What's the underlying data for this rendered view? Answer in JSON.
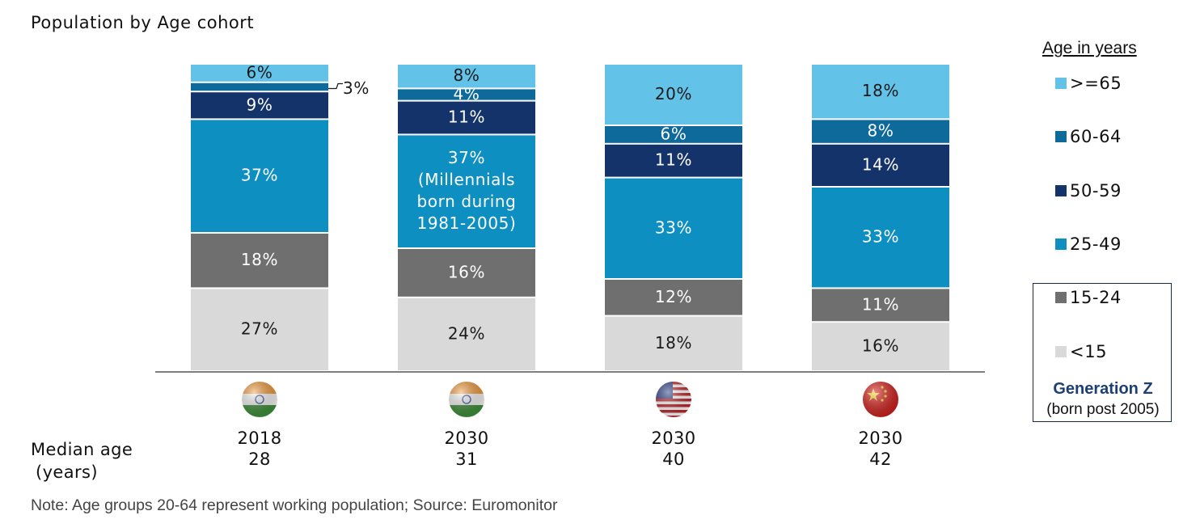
{
  "title": "Population by Age cohort",
  "legend": {
    "title": "Age in years",
    "items": [
      {
        "label": ">=65",
        "color": "#63c2e8"
      },
      {
        "label": "60-64",
        "color": "#0d6a9b"
      },
      {
        "label": "50-59",
        "color": "#14336a"
      },
      {
        "label": "25-49",
        "color": "#0e8fc1"
      },
      {
        "label": "15-24",
        "color": "#6f6f70"
      },
      {
        "label": "<15",
        "color": "#d9d9d9"
      }
    ]
  },
  "generation_z": {
    "title": "Generation  Z",
    "subtitle": "(born post 2005)"
  },
  "median_age_label": [
    "Median age",
    "(years)"
  ],
  "note": "Note: Age groups 20-64 represent working population; Source: Euromonitor",
  "columns": [
    {
      "year": "2018",
      "median_age": "28",
      "flag": "india-flag-icon"
    },
    {
      "year": "2030",
      "median_age": "31",
      "flag": "india-flag-icon"
    },
    {
      "year": "2030",
      "median_age": "40",
      "flag": "usa-flag-icon"
    },
    {
      "year": "2030",
      "median_age": "42",
      "flag": "china-flag-icon"
    }
  ],
  "chart_data": {
    "type": "bar",
    "stacked": true,
    "categories": [
      "2018",
      "2030",
      "2030",
      "2030"
    ],
    "series": [
      {
        "name": "<15",
        "values": [
          27,
          24,
          18,
          16
        ],
        "labels": [
          "27%",
          "24%",
          "18%",
          "16%"
        ]
      },
      {
        "name": "15-24",
        "values": [
          18,
          16,
          12,
          11
        ],
        "labels": [
          "18%",
          "16%",
          "12%",
          "11%"
        ]
      },
      {
        "name": "25-49",
        "values": [
          37,
          37,
          33,
          33
        ],
        "labels": [
          "37%",
          "37%\n(Millennials\nborn during\n1981-2005)",
          "33%",
          "33%"
        ]
      },
      {
        "name": "50-59",
        "values": [
          9,
          11,
          11,
          14
        ],
        "labels": [
          "9%",
          "11%",
          "11%",
          "14%"
        ]
      },
      {
        "name": "60-64",
        "values": [
          3,
          4,
          6,
          8
        ],
        "labels": [
          "3%",
          "4%",
          "6%",
          "8%"
        ]
      },
      {
        "name": ">=65",
        "values": [
          6,
          8,
          20,
          18
        ],
        "labels": [
          "6%",
          "8%",
          "20%",
          "18%"
        ]
      }
    ],
    "ylim": [
      0,
      100
    ]
  }
}
